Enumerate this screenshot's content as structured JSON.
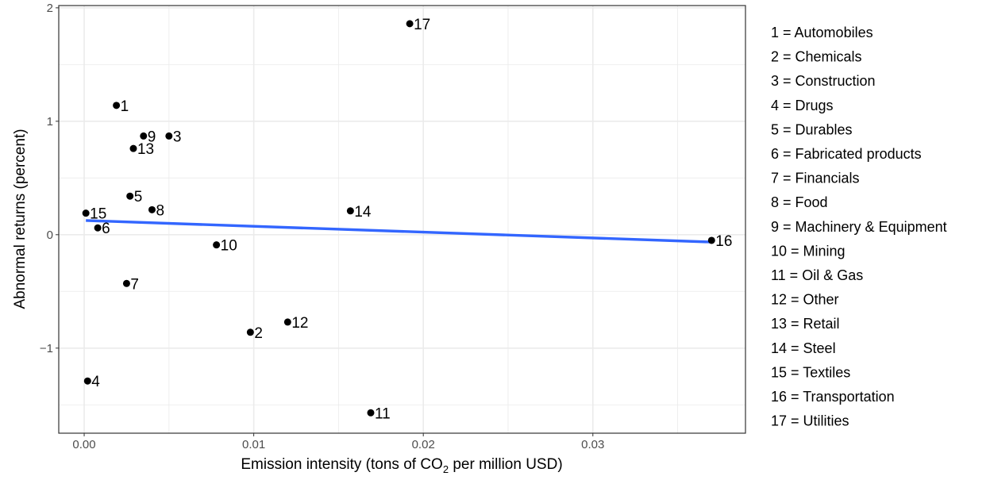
{
  "chart_data": {
    "type": "scatter",
    "xlabel": {
      "prefix": "Emission intensity (tons of CO",
      "subscript": "2",
      "suffix": " per million USD)"
    },
    "ylabel": "Abnormal returns (percent)",
    "xlim": [
      -0.0015,
      0.039
    ],
    "ylim": [
      -1.75,
      2.02
    ],
    "x_ticks": [
      {
        "value": 0.0,
        "label": "0.00"
      },
      {
        "value": 0.01,
        "label": "0.01"
      },
      {
        "value": 0.02,
        "label": "0.02"
      },
      {
        "value": 0.03,
        "label": "0.03"
      }
    ],
    "y_ticks": [
      {
        "value": -1,
        "label": "−1"
      },
      {
        "value": 0,
        "label": "0"
      },
      {
        "value": 1,
        "label": "1"
      },
      {
        "value": 2,
        "label": "2"
      }
    ],
    "grid": true,
    "grid_color": "#ebebeb",
    "point_color": "#000000",
    "trend_color": "#3366ff",
    "points": [
      {
        "id": "1",
        "x": 0.0019,
        "y": 1.14
      },
      {
        "id": "2",
        "x": 0.0098,
        "y": -0.86
      },
      {
        "id": "3",
        "x": 0.005,
        "y": 0.87
      },
      {
        "id": "4",
        "x": 0.0002,
        "y": -1.29
      },
      {
        "id": "5",
        "x": 0.0027,
        "y": 0.34
      },
      {
        "id": "6",
        "x": 0.0008,
        "y": 0.06
      },
      {
        "id": "7",
        "x": 0.0025,
        "y": -0.43
      },
      {
        "id": "8",
        "x": 0.004,
        "y": 0.22
      },
      {
        "id": "9",
        "x": 0.0035,
        "y": 0.87
      },
      {
        "id": "10",
        "x": 0.0078,
        "y": -0.09
      },
      {
        "id": "11",
        "x": 0.0169,
        "y": -1.57
      },
      {
        "id": "12",
        "x": 0.012,
        "y": -0.77
      },
      {
        "id": "13",
        "x": 0.0029,
        "y": 0.76
      },
      {
        "id": "14",
        "x": 0.0157,
        "y": 0.21
      },
      {
        "id": "15",
        "x": 0.0001,
        "y": 0.19
      },
      {
        "id": "16",
        "x": 0.037,
        "y": -0.05
      },
      {
        "id": "17",
        "x": 0.0192,
        "y": 1.86
      }
    ],
    "trend_line": {
      "x": [
        0.0001,
        0.037
      ],
      "y": [
        0.125,
        -0.065
      ]
    },
    "legend_position": "right",
    "legend": [
      "1 = Automobiles",
      "2 = Chemicals",
      "3 = Construction",
      "4 = Drugs",
      "5 = Durables",
      "6 = Fabricated products",
      "7 = Financials",
      "8 = Food",
      "9 = Machinery & Equipment",
      "10 = Mining",
      "11 = Oil & Gas",
      "12 = Other",
      "13 = Retail",
      "14 = Steel",
      "15 = Textiles",
      "16 = Transportation",
      "17 = Utilities"
    ]
  }
}
